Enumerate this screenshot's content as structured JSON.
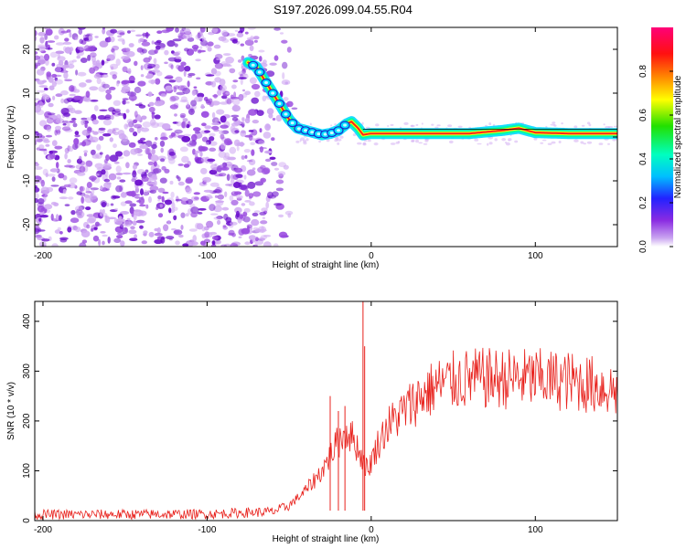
{
  "figure_title": "S197.2026.099.04.55.R04",
  "colors": {
    "snr_line": "#e8211c",
    "axis": "#000000",
    "noise_dark": "#6a0dcc",
    "noise_mid": "#9b4de0",
    "noise_light": "#cfa8f2"
  },
  "chart_data": [
    {
      "type": "heatmap",
      "title": "",
      "xlabel": "Height of straight line (km)",
      "ylabel": "Frequency (Hz)",
      "xlim": [
        -205,
        150
      ],
      "ylim": [
        -25,
        25
      ],
      "x_ticks": [
        -200,
        -100,
        0,
        100
      ],
      "y_ticks": [
        -20,
        -10,
        0,
        10,
        20
      ],
      "grid": false,
      "noise_region_x": [
        -205,
        -45
      ],
      "ridge": {
        "x": [
          -75,
          -70,
          -65,
          -60,
          -55,
          -50,
          -45,
          -40,
          -35,
          -30,
          -25,
          -20,
          -15,
          -12,
          -8,
          -5,
          0,
          10,
          30,
          60,
          80,
          90,
          100,
          120,
          150
        ],
        "frequency_hz": [
          17,
          16,
          13,
          10,
          7,
          4,
          2,
          1.5,
          1,
          0.5,
          0.8,
          1.5,
          3,
          3.5,
          2,
          0.5,
          0.8,
          0.8,
          0.8,
          0.8,
          1.5,
          2,
          1,
          0.8,
          0.8
        ]
      },
      "colorbar": {
        "label": "Normalized spectral amplitude",
        "range": [
          0.0,
          1.0
        ],
        "ticks": [
          "0.0",
          "0.2",
          "0.4",
          "0.6",
          "0.8"
        ],
        "tick_values": [
          0.0,
          0.2,
          0.4,
          0.6,
          0.8
        ]
      }
    },
    {
      "type": "line",
      "title": "",
      "xlabel": "Height of straight line (km)",
      "ylabel": "SNR (10 * v/v)",
      "xlim": [
        -205,
        150
      ],
      "ylim": [
        0,
        440
      ],
      "x_ticks": [
        -200,
        -100,
        0,
        100
      ],
      "y_ticks": [
        0,
        100,
        200,
        300,
        400
      ],
      "grid": false,
      "series": [
        {
          "name": "SNR",
          "trend_x": [
            -205,
            -100,
            -60,
            -50,
            -40,
            -30,
            -25,
            -20,
            -15,
            -10,
            -5,
            -2,
            0,
            5,
            10,
            20,
            30,
            40,
            50,
            60,
            80,
            100,
            120,
            140,
            150
          ],
          "trend_y": [
            12,
            13,
            18,
            30,
            60,
            100,
            130,
            160,
            180,
            160,
            120,
            100,
            120,
            160,
            190,
            220,
            250,
            270,
            280,
            285,
            285,
            285,
            280,
            270,
            260
          ],
          "spikes": [
            {
              "x": -25,
              "y": 250
            },
            {
              "x": -20,
              "y": 220
            },
            {
              "x": -16,
              "y": 230
            },
            {
              "x": -5,
              "y": 440
            },
            {
              "x": -4,
              "y": 350
            }
          ],
          "peak_band": [
            300,
            360
          ]
        }
      ]
    }
  ]
}
